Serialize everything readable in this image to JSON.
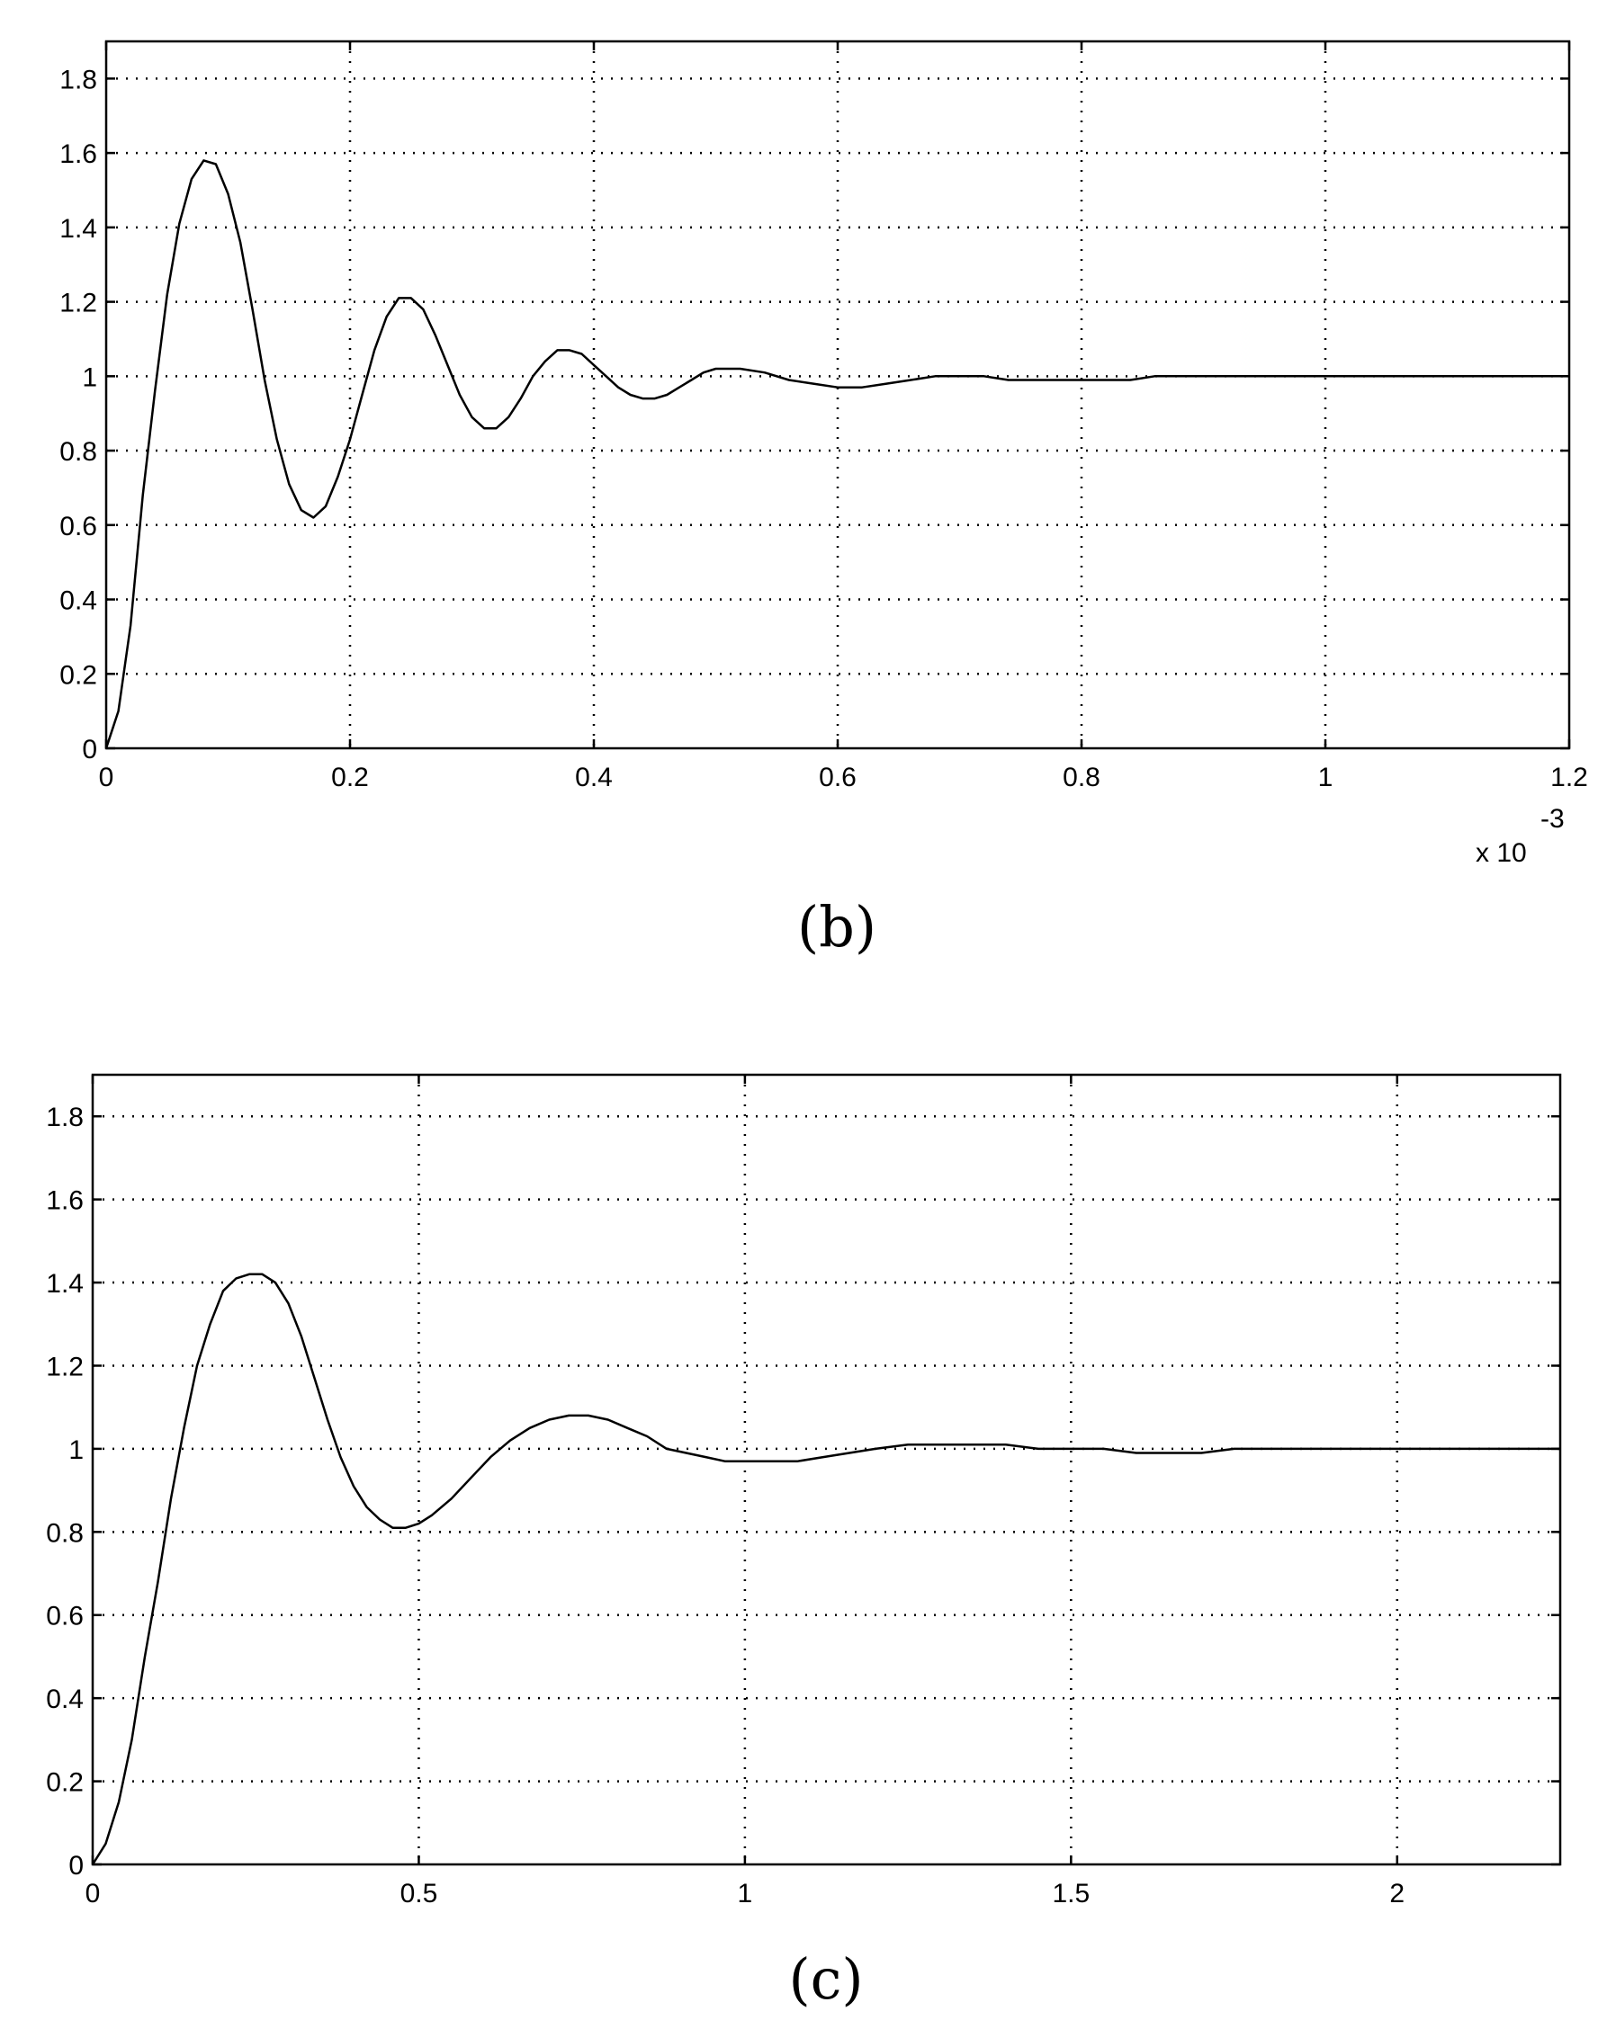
{
  "chart_data": [
    {
      "type": "line",
      "panel_label": "(b)",
      "title": "",
      "xlabel": "",
      "ylabel": "",
      "x_exponent_label": {
        "base": "x 10",
        "power": "-3"
      },
      "xlim": [
        0,
        1.2
      ],
      "ylim": [
        0,
        1.9
      ],
      "grid": true,
      "x_ticks": [
        "0",
        "0.2",
        "0.4",
        "0.6",
        "0.8",
        "1",
        "1.2"
      ],
      "x_tick_values": [
        0,
        0.2,
        0.4,
        0.6,
        0.8,
        1.0,
        1.2
      ],
      "y_ticks": [
        "0",
        "0.2",
        "0.4",
        "0.6",
        "0.8",
        "1",
        "1.2",
        "1.4",
        "1.6",
        "1.8"
      ],
      "y_tick_values": [
        0,
        0.2,
        0.4,
        0.6,
        0.8,
        1.0,
        1.2,
        1.4,
        1.6,
        1.8
      ],
      "series": [
        {
          "color": "#000000",
          "x": [
            0,
            0.01,
            0.02,
            0.03,
            0.04,
            0.05,
            0.06,
            0.07,
            0.08,
            0.09,
            0.1,
            0.11,
            0.12,
            0.13,
            0.14,
            0.15,
            0.16,
            0.17,
            0.18,
            0.19,
            0.2,
            0.21,
            0.22,
            0.23,
            0.24,
            0.25,
            0.26,
            0.27,
            0.28,
            0.29,
            0.3,
            0.31,
            0.32,
            0.33,
            0.34,
            0.35,
            0.36,
            0.37,
            0.38,
            0.39,
            0.4,
            0.41,
            0.42,
            0.43,
            0.44,
            0.45,
            0.46,
            0.47,
            0.48,
            0.49,
            0.5,
            0.52,
            0.54,
            0.56,
            0.58,
            0.6,
            0.62,
            0.64,
            0.66,
            0.68,
            0.7,
            0.72,
            0.74,
            0.76,
            0.78,
            0.8,
            0.82,
            0.84,
            0.86,
            0.88,
            0.9,
            0.92,
            0.94,
            0.96,
            0.98,
            1.0,
            1.04,
            1.08,
            1.12,
            1.16,
            1.2
          ],
          "y": [
            0,
            0.1,
            0.33,
            0.68,
            0.96,
            1.22,
            1.41,
            1.53,
            1.58,
            1.57,
            1.49,
            1.36,
            1.18,
            0.99,
            0.83,
            0.71,
            0.64,
            0.62,
            0.65,
            0.73,
            0.83,
            0.95,
            1.07,
            1.16,
            1.21,
            1.21,
            1.18,
            1.11,
            1.03,
            0.95,
            0.89,
            0.86,
            0.86,
            0.89,
            0.94,
            1.0,
            1.04,
            1.07,
            1.07,
            1.06,
            1.03,
            1.0,
            0.97,
            0.95,
            0.94,
            0.94,
            0.95,
            0.97,
            0.99,
            1.01,
            1.02,
            1.02,
            1.01,
            0.99,
            0.98,
            0.97,
            0.97,
            0.98,
            0.99,
            1.0,
            1.0,
            1.0,
            0.99,
            0.99,
            0.99,
            0.99,
            0.99,
            0.99,
            1.0,
            1.0,
            1.0,
            1.0,
            1.0,
            1.0,
            1.0,
            1.0,
            1.0,
            1.0,
            1.0,
            1.0,
            1.0
          ]
        }
      ]
    },
    {
      "type": "line",
      "panel_label": "(c)",
      "title": "",
      "xlabel": "",
      "ylabel": "",
      "xlim": [
        0,
        2.25
      ],
      "ylim": [
        0,
        1.9
      ],
      "grid": true,
      "x_ticks": [
        "0",
        "0.5",
        "1",
        "1.5",
        "2"
      ],
      "x_tick_values": [
        0,
        0.5,
        1.0,
        1.5,
        2.0
      ],
      "y_ticks": [
        "0",
        "0.2",
        "0.4",
        "0.6",
        "0.8",
        "1",
        "1.2",
        "1.4",
        "1.6",
        "1.8"
      ],
      "y_tick_values": [
        0,
        0.2,
        0.4,
        0.6,
        0.8,
        1.0,
        1.2,
        1.4,
        1.6,
        1.8
      ],
      "series": [
        {
          "color": "#000000",
          "x": [
            0,
            0.02,
            0.04,
            0.06,
            0.08,
            0.1,
            0.12,
            0.14,
            0.16,
            0.18,
            0.2,
            0.22,
            0.24,
            0.26,
            0.28,
            0.3,
            0.32,
            0.34,
            0.36,
            0.38,
            0.4,
            0.42,
            0.44,
            0.46,
            0.48,
            0.5,
            0.52,
            0.55,
            0.58,
            0.61,
            0.64,
            0.67,
            0.7,
            0.73,
            0.76,
            0.79,
            0.82,
            0.85,
            0.88,
            0.91,
            0.94,
            0.97,
            1.0,
            1.04,
            1.08,
            1.12,
            1.16,
            1.2,
            1.25,
            1.3,
            1.35,
            1.4,
            1.45,
            1.5,
            1.55,
            1.6,
            1.65,
            1.7,
            1.75,
            1.8,
            1.9,
            2.0,
            2.1,
            2.25
          ],
          "y": [
            0,
            0.05,
            0.15,
            0.3,
            0.5,
            0.68,
            0.88,
            1.05,
            1.2,
            1.3,
            1.38,
            1.41,
            1.42,
            1.42,
            1.4,
            1.35,
            1.27,
            1.17,
            1.07,
            0.98,
            0.91,
            0.86,
            0.83,
            0.81,
            0.81,
            0.82,
            0.84,
            0.88,
            0.93,
            0.98,
            1.02,
            1.05,
            1.07,
            1.08,
            1.08,
            1.07,
            1.05,
            1.03,
            1.0,
            0.99,
            0.98,
            0.97,
            0.97,
            0.97,
            0.97,
            0.98,
            0.99,
            1.0,
            1.01,
            1.01,
            1.01,
            1.01,
            1.0,
            1.0,
            1.0,
            0.99,
            0.99,
            0.99,
            1.0,
            1.0,
            1.0,
            1.0,
            1.0,
            1.0
          ]
        }
      ]
    }
  ]
}
